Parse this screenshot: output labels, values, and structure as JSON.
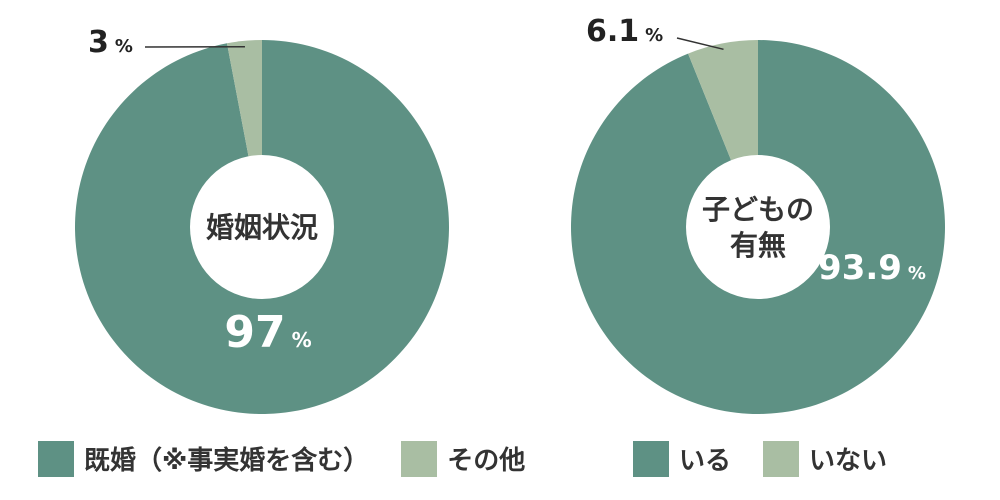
{
  "colors": {
    "primary": "#5e9184",
    "secondary": "#a9bea3",
    "text_light": "#ffffff",
    "text_dark": "#222222"
  },
  "chart_data": [
    {
      "type": "pie",
      "center_label_lines": [
        "婚姻状況"
      ],
      "slices": [
        {
          "label": "既婚（※事実婚を含む）",
          "value": 97,
          "value_text": "97",
          "unit": "%"
        },
        {
          "label": "その他",
          "value": 3,
          "value_text": "3",
          "unit": "%"
        }
      ]
    },
    {
      "type": "pie",
      "center_label_lines": [
        "子どもの",
        "有無"
      ],
      "slices": [
        {
          "label": "いる",
          "value": 93.9,
          "value_text": "93.9",
          "unit": "%"
        },
        {
          "label": "いない",
          "value": 6.1,
          "value_text": "6.1",
          "unit": "%"
        }
      ]
    }
  ]
}
